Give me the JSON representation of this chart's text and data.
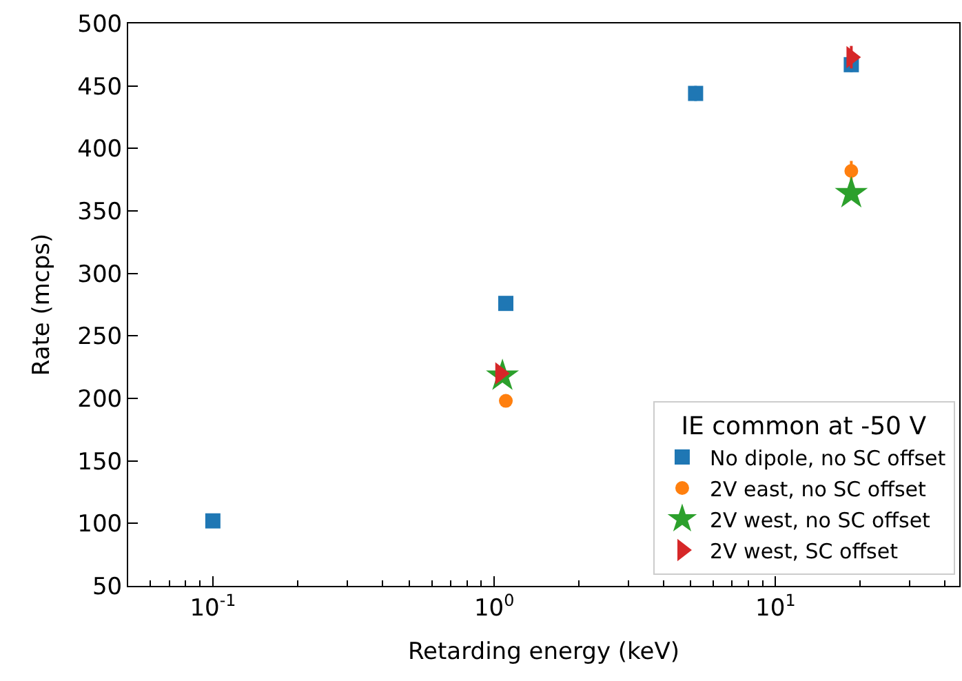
{
  "chart_data": {
    "type": "scatter",
    "xlabel": "Retarding energy (keV)",
    "ylabel": "Rate (mcps)",
    "legend_title": "IE common at -50 V",
    "log": "x",
    "xlim": [
      0.05,
      45
    ],
    "xticks": [
      {
        "value": 0.1,
        "label": "10$^{-1}$"
      },
      {
        "value": 1,
        "label": "10$^{0}$"
      },
      {
        "value": 10,
        "label": "10$^{1}$"
      }
    ],
    "ylim": [
      50,
      500
    ],
    "yticks": [
      50,
      100,
      150,
      200,
      250,
      300,
      350,
      400,
      450,
      500
    ],
    "legend": "bottom right",
    "series": [
      {
        "name": "No dipole, no SC offset",
        "color": "#1f77b4",
        "marker": "square",
        "x": [
          0.1,
          1.1,
          5.2,
          18.6
        ],
        "values": [
          102,
          276,
          444,
          467
        ],
        "errors": [
          3,
          3,
          6,
          6
        ]
      },
      {
        "name": "2V east, no SC offset",
        "color": "#ff7f0e",
        "marker": "circle",
        "x": [
          1.1,
          18.6
        ],
        "values": [
          198,
          382
        ],
        "errors": [
          3,
          8
        ]
      },
      {
        "name": "2V west, no SC offset",
        "color": "#2ca02c",
        "marker": "star",
        "x": [
          1.07,
          18.6
        ],
        "values": [
          218,
          364
        ],
        "errors": [
          3,
          3
        ]
      },
      {
        "name": "2V west, SC offset",
        "color": "#d62728",
        "marker": "triangle",
        "x": [
          1.05,
          18.6
        ],
        "values": [
          220,
          473
        ],
        "errors": [
          3,
          9
        ]
      }
    ]
  }
}
